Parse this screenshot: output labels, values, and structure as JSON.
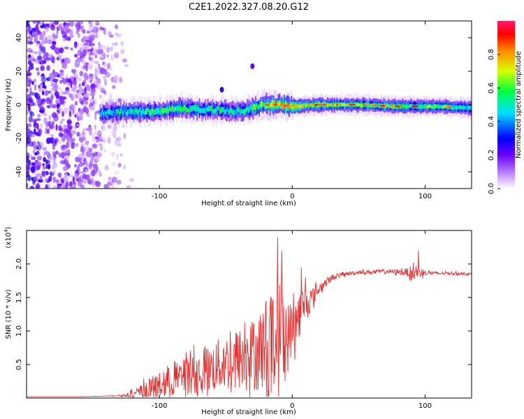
{
  "title": "C2E1.2022.327.08.20.G12",
  "colors": {
    "snr_line": "#e53030",
    "colormap": [
      "#ffffff",
      "#8a2be2",
      "#0000ff",
      "#00d8ff",
      "#00ff60",
      "#ffff00",
      "#ff8000",
      "#ff0000",
      "#ff1a6a"
    ]
  },
  "chart_data": [
    {
      "type": "heatmap",
      "name": "spectrogram",
      "xlabel": "Height of straight line (km)",
      "ylabel": "Frequency (Hz)",
      "xlim": [
        -200,
        135
      ],
      "ylim": [
        -50,
        50
      ],
      "xticks": [
        -100,
        0,
        100
      ],
      "xtick_labels": [
        "-100",
        "0",
        "100"
      ],
      "yticks": [
        -40,
        -20,
        0,
        20,
        40
      ],
      "ytick_labels": [
        "-40",
        "-20",
        "0",
        "20",
        "40"
      ],
      "grid": false,
      "colorbar": {
        "label": "Normalized spectral amplitude",
        "range": [
          0,
          1
        ],
        "ticks": [
          0,
          0.2,
          0.4,
          0.6,
          0.8
        ],
        "tick_labels": [
          "0.0",
          "0.2",
          "0.4",
          "0.6",
          "0.8"
        ]
      },
      "ridge": {
        "x": [
          -145,
          -120,
          -100,
          -85,
          -70,
          -55,
          -40,
          -30,
          -20,
          -10,
          0,
          20,
          50,
          80,
          110,
          135
        ],
        "frequency": [
          -5,
          -4,
          -4,
          -2,
          -3,
          -3,
          -4,
          -2,
          0,
          0,
          -1,
          0,
          0,
          -1,
          -1,
          -2
        ],
        "amplitude": [
          0.45,
          0.5,
          0.55,
          0.55,
          0.5,
          0.5,
          0.5,
          0.55,
          0.6,
          0.75,
          0.7,
          0.6,
          0.55,
          0.55,
          0.55,
          0.5
        ]
      },
      "features": [
        {
          "x": -30,
          "frequency": 23,
          "amplitude": 0.2
        },
        {
          "x": -53,
          "frequency": 9,
          "amplitude": 0.25
        }
      ],
      "noise_region": {
        "x": [
          -200,
          -120
        ],
        "frequency": [
          -50,
          50
        ],
        "amplitude": 0.15
      }
    },
    {
      "type": "line",
      "name": "snr",
      "xlabel": "Height of straight line (km)",
      "ylabel": "SNR (10 * v/v)",
      "multiplier_label": "(x10",
      "multiplier_exp": "4",
      "multiplier_close": ")",
      "xlim": [
        -200,
        135
      ],
      "ylim": [
        0,
        2.5
      ],
      "xticks": [
        -100,
        0,
        100
      ],
      "xtick_labels": [
        "-100",
        "0",
        "100"
      ],
      "yticks": [
        0.5,
        1.0,
        1.5,
        2.0
      ],
      "ytick_labels": [
        "0.5",
        "1.0",
        "1.5",
        "2.0"
      ],
      "grid": false,
      "series": [
        {
          "x": [
            -200,
            -180,
            -160,
            -140,
            -125,
            -115,
            -105,
            -95,
            -85,
            -75,
            -65,
            -55,
            -45,
            -35,
            -25,
            -20,
            -15,
            -10,
            -8,
            -5,
            0,
            5,
            10,
            15,
            20,
            25,
            30,
            40,
            50,
            60,
            70,
            80,
            85,
            90,
            95,
            100,
            110,
            120,
            135
          ],
          "y": [
            0.02,
            0.02,
            0.02,
            0.03,
            0.04,
            0.08,
            0.15,
            0.22,
            0.3,
            0.35,
            0.4,
            0.5,
            0.55,
            0.6,
            0.7,
            0.8,
            0.85,
            0.95,
            1.2,
            0.85,
            1.05,
            1.25,
            1.4,
            1.5,
            1.62,
            1.72,
            1.8,
            1.85,
            1.88,
            1.88,
            1.89,
            1.88,
            1.88,
            1.88,
            1.88,
            1.87,
            1.86,
            1.86,
            1.85
          ],
          "amplitude": [
            0.0,
            0.0,
            0.0,
            0.0,
            0.02,
            0.1,
            0.18,
            0.22,
            0.25,
            0.3,
            0.35,
            0.4,
            0.45,
            0.5,
            0.6,
            0.7,
            0.75,
            0.7,
            0.7,
            0.6,
            0.4,
            0.35,
            0.3,
            0.15,
            0.08,
            0.06,
            0.04,
            0.03,
            0.03,
            0.03,
            0.03,
            0.04,
            0.05,
            0.1,
            0.1,
            0.04,
            0.02,
            0.02,
            0.02
          ],
          "spikes": [
            {
              "x": -11,
              "y": 2.4
            },
            {
              "x": -8,
              "y": 2.2
            },
            {
              "x": 7,
              "y": 1.95
            },
            {
              "x": 10,
              "y": 1.8
            },
            {
              "x": 95,
              "y": 2.2
            }
          ]
        }
      ]
    }
  ]
}
